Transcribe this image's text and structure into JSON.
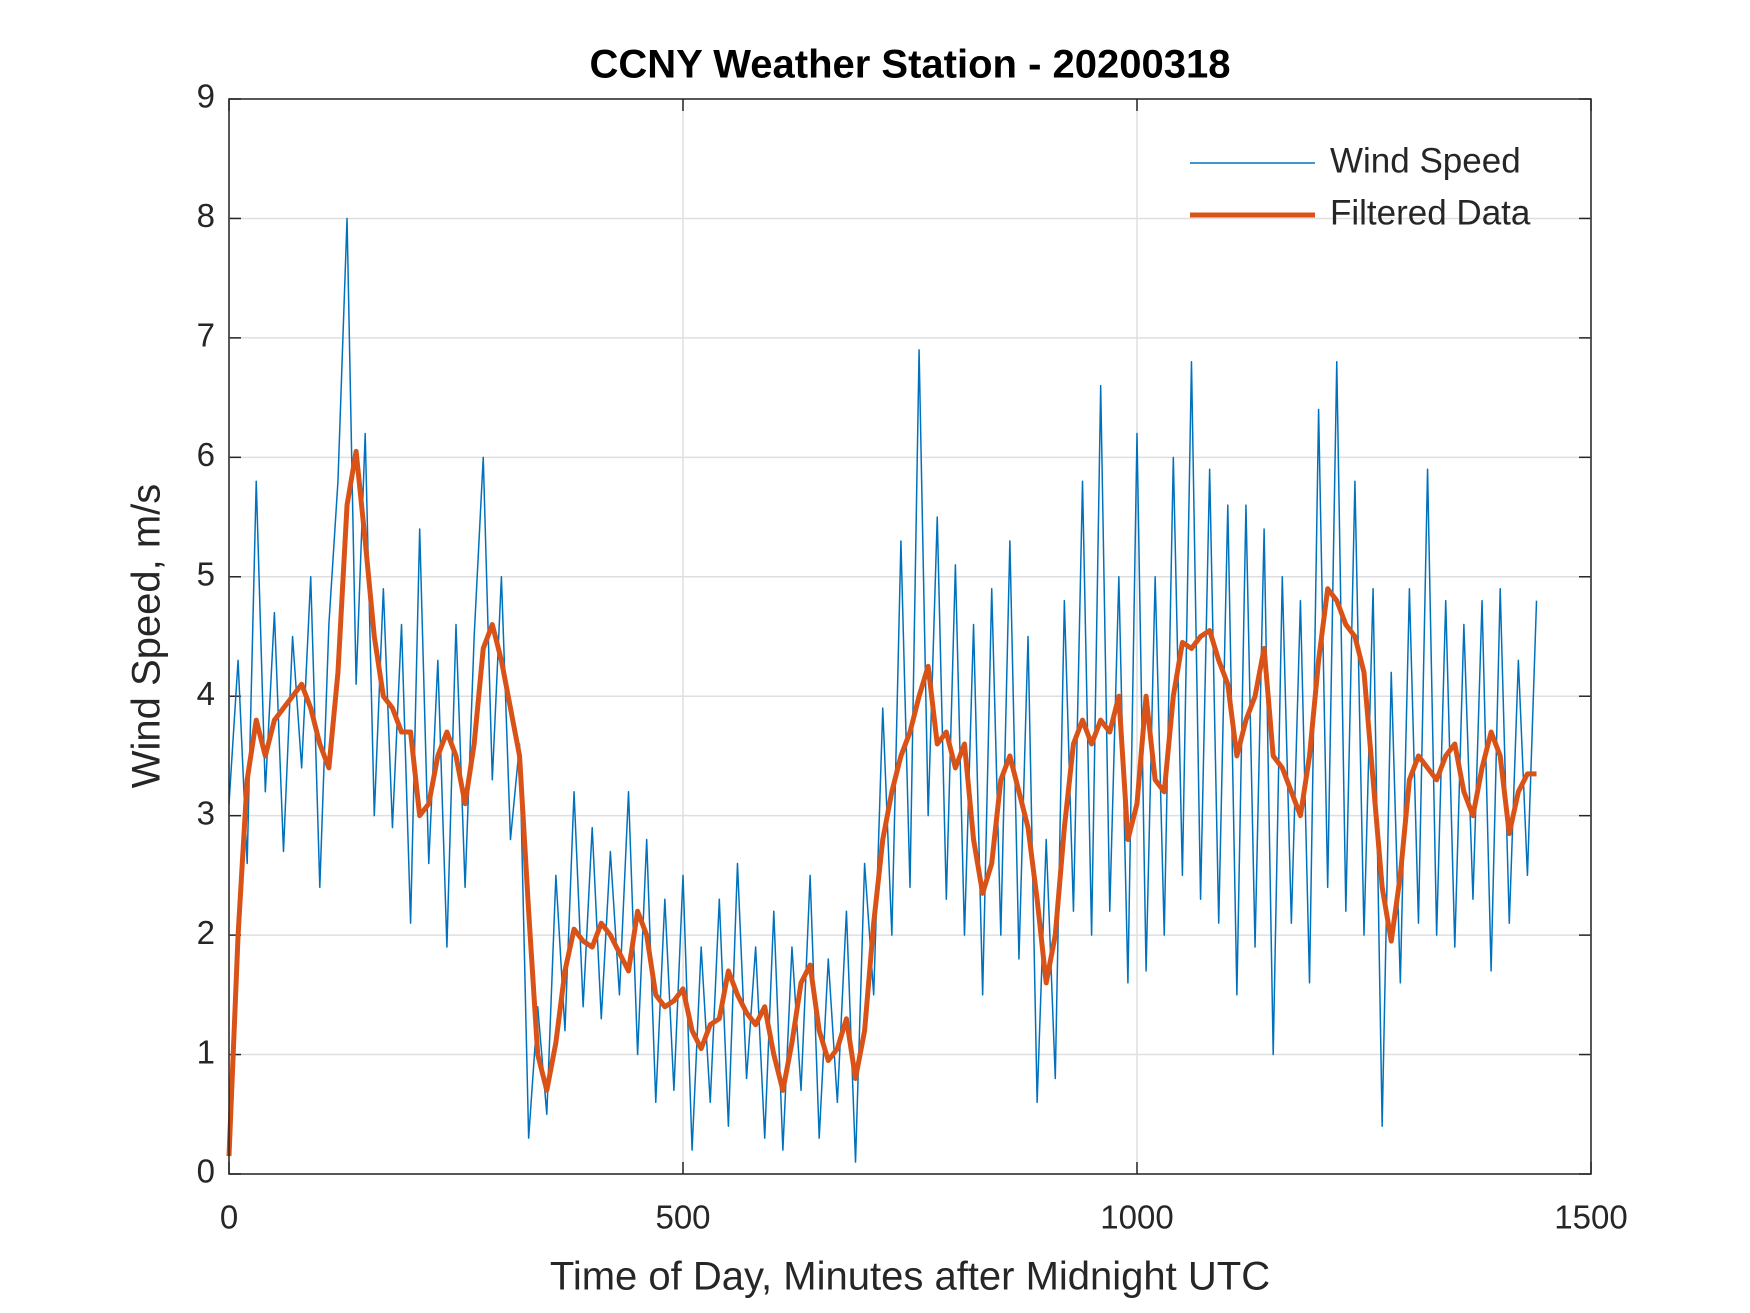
{
  "chart_data": {
    "type": "line",
    "title": "CCNY Weather Station - 20200318",
    "x_label": "Time of Day, Minutes after Midnight UTC",
    "y_label": "Wind Speed, m/s",
    "x": [
      0,
      10,
      20,
      30,
      40,
      50,
      60,
      70,
      80,
      90,
      100,
      110,
      120,
      130,
      140,
      150,
      160,
      170,
      180,
      190,
      200,
      210,
      220,
      230,
      240,
      250,
      260,
      270,
      280,
      290,
      300,
      310,
      320,
      330,
      340,
      350,
      360,
      370,
      380,
      390,
      400,
      410,
      420,
      430,
      440,
      450,
      460,
      470,
      480,
      490,
      500,
      510,
      520,
      530,
      540,
      550,
      560,
      570,
      580,
      590,
      600,
      610,
      620,
      630,
      640,
      650,
      660,
      670,
      680,
      690,
      700,
      710,
      720,
      730,
      740,
      750,
      760,
      770,
      780,
      790,
      800,
      810,
      820,
      830,
      840,
      850,
      860,
      870,
      880,
      890,
      900,
      910,
      920,
      930,
      940,
      950,
      960,
      970,
      980,
      990,
      1000,
      1010,
      1020,
      1030,
      1040,
      1050,
      1060,
      1070,
      1080,
      1090,
      1100,
      1110,
      1120,
      1130,
      1140,
      1150,
      1160,
      1170,
      1180,
      1190,
      1200,
      1210,
      1220,
      1230,
      1240,
      1250,
      1260,
      1270,
      1280,
      1290,
      1300,
      1310,
      1320,
      1330,
      1340,
      1350,
      1360,
      1370,
      1380,
      1390,
      1400,
      1410,
      1420,
      1430,
      1440
    ],
    "series": [
      {
        "name": "Wind Speed",
        "color": "#0072BD",
        "width": 1.5,
        "values": [
          3.1,
          4.3,
          2.6,
          5.8,
          3.2,
          4.7,
          2.7,
          4.5,
          3.4,
          5.0,
          2.4,
          4.6,
          5.8,
          8.0,
          4.1,
          6.2,
          3.0,
          4.9,
          2.9,
          4.6,
          2.1,
          5.4,
          2.6,
          4.3,
          1.9,
          4.6,
          2.4,
          4.5,
          6.0,
          3.3,
          5.0,
          2.8,
          3.6,
          0.3,
          1.4,
          0.5,
          2.5,
          1.2,
          3.2,
          1.4,
          2.9,
          1.3,
          2.7,
          1.5,
          3.2,
          1.0,
          2.8,
          0.6,
          2.3,
          0.7,
          2.5,
          0.2,
          1.9,
          0.6,
          2.3,
          0.4,
          2.6,
          0.8,
          1.9,
          0.3,
          2.2,
          0.2,
          1.9,
          0.7,
          2.5,
          0.3,
          1.8,
          0.6,
          2.2,
          0.1,
          2.6,
          1.5,
          3.9,
          2.0,
          5.3,
          2.4,
          6.9,
          3.0,
          5.5,
          2.3,
          5.1,
          2.0,
          4.6,
          1.5,
          4.9,
          2.0,
          5.3,
          1.8,
          4.5,
          0.6,
          2.8,
          0.8,
          4.8,
          2.2,
          5.8,
          2.0,
          6.6,
          2.2,
          5.0,
          1.6,
          6.2,
          1.7,
          5.0,
          2.0,
          6.0,
          2.5,
          6.8,
          2.3,
          5.9,
          2.1,
          5.6,
          1.5,
          5.6,
          1.9,
          5.4,
          1.0,
          5.0,
          2.1,
          4.8,
          1.6,
          6.4,
          2.4,
          6.8,
          2.2,
          5.8,
          2.0,
          4.9,
          0.4,
          4.2,
          1.6,
          4.9,
          2.1,
          5.9,
          2.0,
          4.8,
          1.9,
          4.6,
          2.3,
          4.8,
          1.7,
          4.9,
          2.1,
          4.3,
          2.5,
          4.8
        ]
      },
      {
        "name": "Filtered Data",
        "color": "#D95319",
        "width": 5,
        "values": [
          0.15,
          2.0,
          3.3,
          3.8,
          3.5,
          3.8,
          3.9,
          4.0,
          4.1,
          3.9,
          3.6,
          3.4,
          4.2,
          5.6,
          6.05,
          5.3,
          4.5,
          4.0,
          3.9,
          3.7,
          3.7,
          3.0,
          3.1,
          3.5,
          3.7,
          3.5,
          3.1,
          3.6,
          4.4,
          4.6,
          4.3,
          3.9,
          3.5,
          2.2,
          1.0,
          0.7,
          1.1,
          1.7,
          2.05,
          1.95,
          1.9,
          2.1,
          2.0,
          1.85,
          1.7,
          2.2,
          2.0,
          1.5,
          1.4,
          1.45,
          1.55,
          1.2,
          1.05,
          1.25,
          1.3,
          1.7,
          1.5,
          1.35,
          1.25,
          1.4,
          1.0,
          0.7,
          1.1,
          1.6,
          1.75,
          1.2,
          0.95,
          1.05,
          1.3,
          0.8,
          1.2,
          2.1,
          2.8,
          3.2,
          3.5,
          3.7,
          4.0,
          4.25,
          3.6,
          3.7,
          3.4,
          3.6,
          2.8,
          2.35,
          2.6,
          3.3,
          3.5,
          3.2,
          2.9,
          2.3,
          1.6,
          2.0,
          2.9,
          3.6,
          3.8,
          3.6,
          3.8,
          3.7,
          4.0,
          2.8,
          3.1,
          4.0,
          3.3,
          3.2,
          4.0,
          4.45,
          4.4,
          4.5,
          4.55,
          4.3,
          4.1,
          3.5,
          3.8,
          4.0,
          4.4,
          3.5,
          3.4,
          3.2,
          3.0,
          3.5,
          4.3,
          4.9,
          4.8,
          4.6,
          4.5,
          4.2,
          3.3,
          2.4,
          1.95,
          2.5,
          3.3,
          3.5,
          3.4,
          3.3,
          3.5,
          3.6,
          3.2,
          3.0,
          3.4,
          3.7,
          3.5,
          2.85,
          3.2,
          3.35,
          3.35
        ]
      }
    ],
    "xlim": [
      0,
      1500
    ],
    "xticks": [
      0,
      500,
      1000,
      1500
    ],
    "ylim": [
      0,
      9
    ],
    "yticks": [
      0,
      1,
      2,
      3,
      4,
      5,
      6,
      7,
      8,
      9
    ],
    "grid": true,
    "legend": "upper right"
  }
}
